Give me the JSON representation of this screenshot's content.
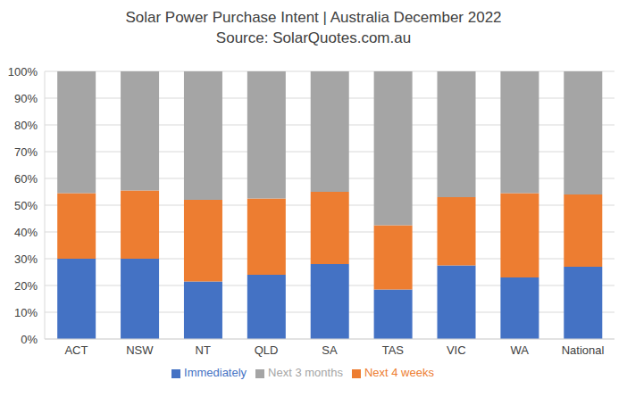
{
  "chart_data": {
    "type": "bar",
    "title": "Solar Power Purchase Intent | Australia December 2022",
    "subtitle": "Source: SolarQuotes.com.au",
    "categories": [
      "ACT",
      "NSW",
      "NT",
      "QLD",
      "SA",
      "TAS",
      "VIC",
      "WA",
      "National"
    ],
    "series": [
      {
        "name": "Immediately",
        "color": "#4472c4",
        "values": [
          30,
          30,
          21.5,
          24,
          28,
          18.5,
          27.5,
          23,
          27
        ]
      },
      {
        "name": "Next 4 weeks",
        "color": "#ed7d31",
        "values": [
          24.5,
          25.5,
          30.5,
          28.5,
          27,
          24,
          25.5,
          31.5,
          27
        ]
      },
      {
        "name": "Next 3 months",
        "color": "#a5a5a5",
        "values": [
          45.5,
          44.5,
          48,
          47.5,
          45,
          57.5,
          47,
          45.5,
          46
        ]
      }
    ],
    "ylim": [
      0,
      100
    ],
    "yticks": [
      {
        "value": 0,
        "label": "0%"
      },
      {
        "value": 10,
        "label": "10%"
      },
      {
        "value": 20,
        "label": "20%"
      },
      {
        "value": 30,
        "label": "30%"
      },
      {
        "value": 40,
        "label": "40%"
      },
      {
        "value": 50,
        "label": "50%"
      },
      {
        "value": 60,
        "label": "60%"
      },
      {
        "value": 70,
        "label": "70%"
      },
      {
        "value": 80,
        "label": "80%"
      },
      {
        "value": 90,
        "label": "90%"
      },
      {
        "value": 100,
        "label": "100%"
      }
    ],
    "stacked": true,
    "grid": true,
    "legend": "bottom"
  }
}
